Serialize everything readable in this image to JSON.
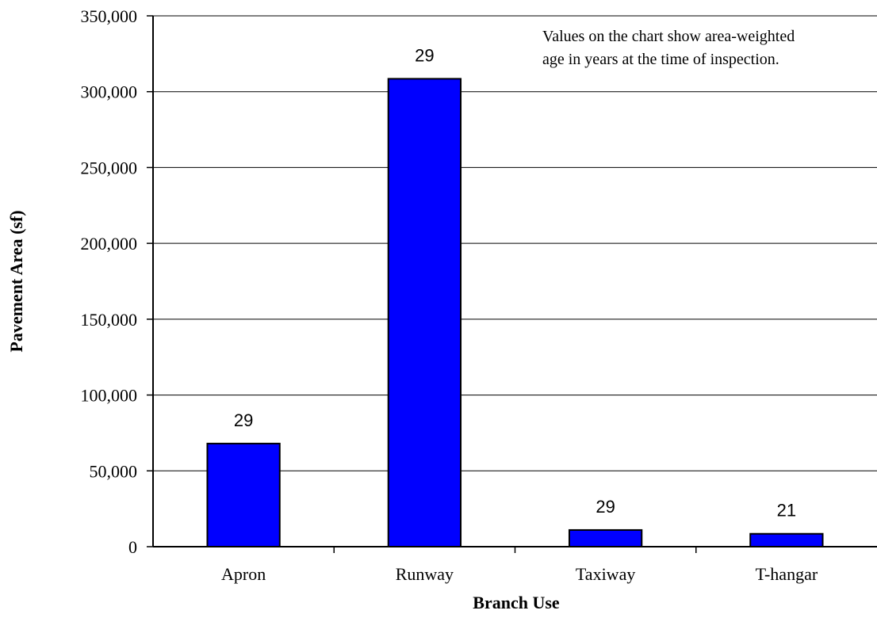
{
  "chart_data": {
    "type": "bar",
    "categories": [
      "Apron",
      "Runway",
      "Taxiway",
      "T-hangar"
    ],
    "values": [
      68000,
      308500,
      11000,
      8500
    ],
    "data_labels": [
      "29",
      "29",
      "29",
      "21"
    ],
    "title": "",
    "xlabel": "Branch Use",
    "ylabel": "Pavement Area (sf)",
    "ylim": [
      0,
      350000
    ],
    "yticks": [
      0,
      50000,
      100000,
      150000,
      200000,
      250000,
      300000,
      350000
    ],
    "ytick_labels": [
      "0",
      "50,000",
      "100,000",
      "150,000",
      "200,000",
      "250,000",
      "300,000",
      "350,000"
    ],
    "grid": true,
    "bar_color": "#0000FF",
    "annotation": [
      "Values on the chart show area-weighted",
      "age in years at the time of inspection."
    ]
  }
}
